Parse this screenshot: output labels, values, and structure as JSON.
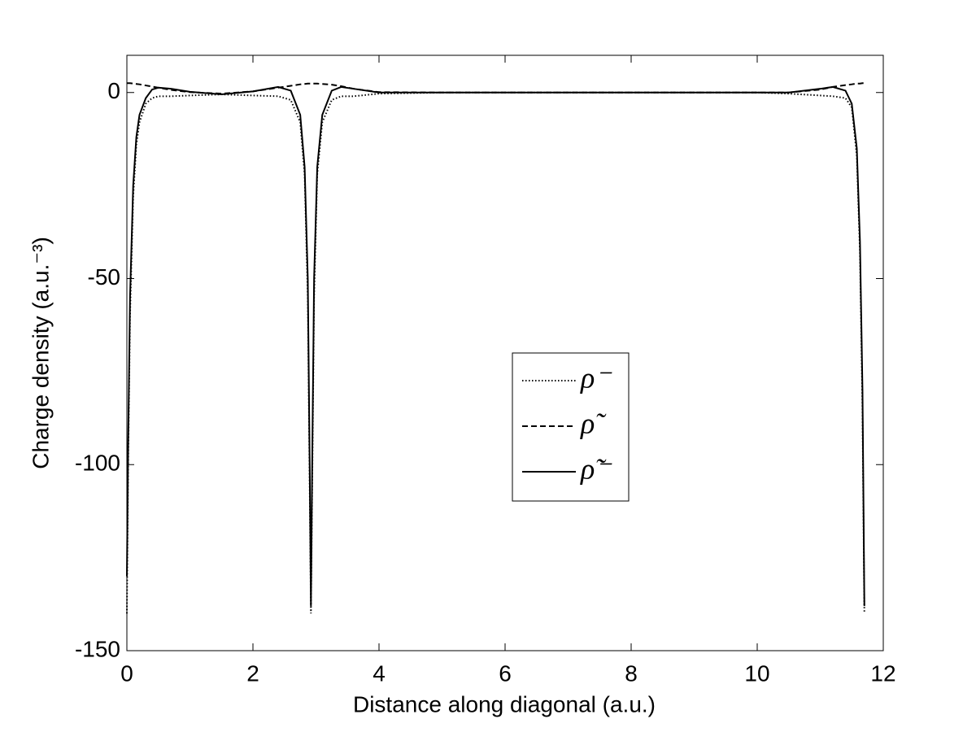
{
  "chart_data": {
    "type": "line",
    "xlabel": "Distance along diagonal (a.u.)",
    "ylabel": "Charge density (a.u.⁻³)",
    "x": [
      0,
      0.02,
      0.05,
      0.1,
      0.15,
      0.2,
      0.3,
      0.4,
      0.5,
      0.7,
      1.0,
      1.5,
      2.0,
      2.4,
      2.6,
      2.75,
      2.82,
      2.87,
      2.9,
      2.92,
      2.94,
      2.97,
      3.02,
      3.1,
      3.25,
      3.4,
      3.6,
      4,
      5,
      6,
      7,
      8,
      9,
      10,
      10.5,
      11,
      11.2,
      11.4,
      11.5,
      11.58,
      11.63,
      11.67,
      11.7
    ],
    "series": [
      {
        "name": "ρ⁻",
        "color": "#000000",
        "style": "dotted",
        "values": [
          -140,
          -100,
          -60,
          -28,
          -14,
          -8,
          -3,
          -1.5,
          -1,
          -1,
          -0.8,
          -0.5,
          -0.8,
          -1,
          -2,
          -8,
          -22,
          -55,
          -105,
          -140,
          -105,
          -55,
          -22,
          -8,
          -2,
          -1,
          -1,
          -0.3,
          0,
          0,
          0,
          0,
          0,
          0,
          -0.3,
          -0.8,
          -1,
          -1.5,
          -4,
          -17,
          -43,
          -85,
          -140
        ]
      },
      {
        "name": "ρ̃",
        "color": "#000000",
        "style": "dashed",
        "values": [
          2.5,
          2.5,
          2.5,
          2.4,
          2.3,
          2.2,
          1.9,
          1.6,
          1.3,
          0.7,
          0.1,
          -0.3,
          0.3,
          1.3,
          1.8,
          2.2,
          2.3,
          2.4,
          2.4,
          2.4,
          2.4,
          2.4,
          2.4,
          2.3,
          2.1,
          1.7,
          1.0,
          0.1,
          0,
          0,
          0,
          0,
          0,
          0,
          0,
          0.8,
          1.5,
          2.0,
          2.2,
          2.4,
          2.4,
          2.5,
          2.5
        ]
      },
      {
        "name": "ρ̃⁻",
        "color": "#000000",
        "style": "solid",
        "values": [
          -130,
          -95,
          -55,
          -25,
          -12,
          -6,
          -1.5,
          0.8,
          1.3,
          1.0,
          0.2,
          -0.5,
          0.3,
          1.5,
          0.5,
          -6,
          -20,
          -50,
          -100,
          -138,
          -100,
          -50,
          -20,
          -6,
          0.5,
          1.5,
          1.0,
          0,
          0,
          0,
          0,
          0,
          0,
          0,
          0,
          1.0,
          1.5,
          0.5,
          -3,
          -15,
          -40,
          -80,
          -138
        ]
      }
    ],
    "xlim": [
      0,
      12
    ],
    "xticks": [
      0,
      2,
      4,
      6,
      8,
      10,
      12
    ],
    "ylim": [
      -150,
      10
    ],
    "yticks": [
      -150,
      -100,
      -50,
      0
    ],
    "grid": false
  }
}
